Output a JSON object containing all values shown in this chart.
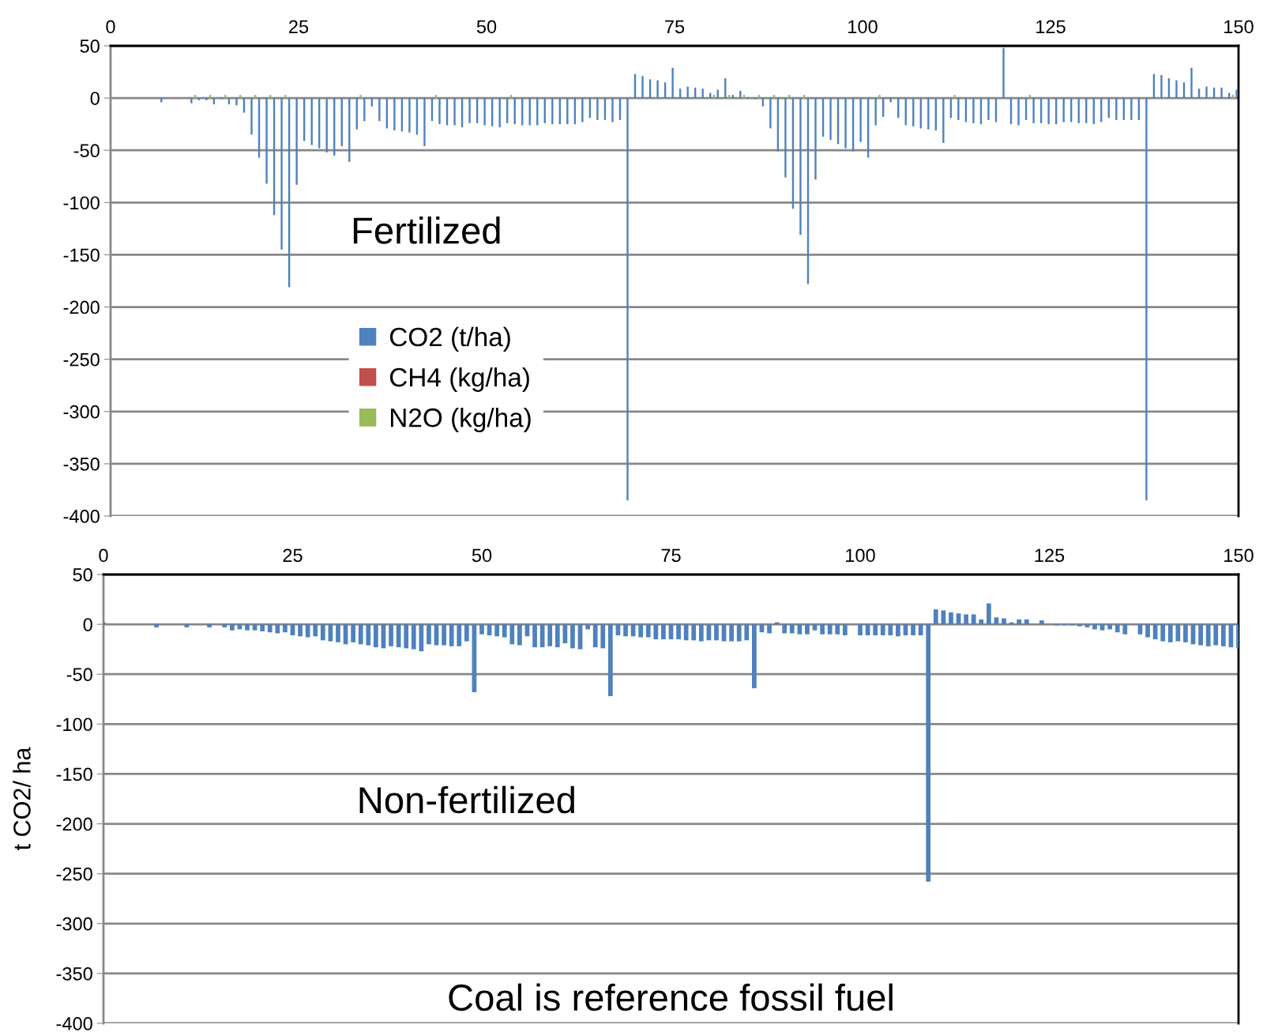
{
  "chart_data": [
    {
      "type": "bar",
      "annotations": [
        "Fertilized"
      ],
      "xlim": [
        0,
        150
      ],
      "xticks": [
        0,
        25,
        50,
        75,
        100,
        125,
        150
      ],
      "ylim": [
        -400,
        50
      ],
      "yticks": [
        50,
        0,
        -50,
        -100,
        -150,
        -200,
        -250,
        -300,
        -350,
        -400
      ],
      "grid": "y",
      "legend": "left",
      "series": [
        {
          "name": "CO2 (t/ha)",
          "color": "#4f81bd",
          "x": [
            7,
            11,
            12,
            13,
            14,
            15,
            16,
            17,
            18,
            19,
            20,
            21,
            22,
            23,
            24,
            25,
            26,
            27,
            28,
            29,
            30,
            31,
            32,
            33,
            34,
            35,
            36,
            37,
            38,
            39,
            40,
            41,
            42,
            43,
            44,
            45,
            46,
            47,
            48,
            49,
            50,
            51,
            52,
            53,
            54,
            55,
            56,
            57,
            58,
            59,
            60,
            61,
            62,
            63,
            64,
            65,
            66,
            67,
            68,
            69,
            70,
            71,
            72,
            73,
            74,
            75,
            76,
            77,
            78,
            79,
            80,
            81,
            82,
            83,
            84,
            85,
            86,
            87,
            88,
            89,
            90,
            91,
            92,
            93,
            94,
            95,
            96,
            97,
            98,
            99,
            100,
            101,
            102,
            103,
            104,
            105,
            106,
            107,
            108,
            109,
            110,
            111,
            112,
            113,
            114,
            115,
            116,
            117,
            118,
            119,
            120,
            121,
            122,
            123,
            124,
            125,
            126,
            127,
            128,
            129,
            130,
            131,
            132,
            133,
            134,
            135,
            136,
            137,
            138,
            139,
            140,
            141,
            142,
            143,
            144,
            145,
            146,
            147,
            148,
            149,
            150
          ],
          "values": [
            -4,
            -5,
            -2,
            -2,
            -6,
            -1,
            -6,
            -7,
            -14,
            -35,
            -57,
            -82,
            -112,
            -145,
            -181,
            -83,
            -41,
            -45,
            -48,
            -52,
            -55,
            -46,
            -61,
            -30,
            -22,
            -8,
            -22,
            -29,
            -31,
            -32,
            -33,
            -35,
            -46,
            -22,
            -25,
            -26,
            -26,
            -28,
            -24,
            -24,
            -26,
            -27,
            -28,
            -24,
            -25,
            -26,
            -26,
            -26,
            -24,
            -25,
            -25,
            -25,
            -25,
            -23,
            -19,
            -21,
            -21,
            -23,
            -21,
            -385,
            23,
            21,
            18,
            17,
            15,
            29,
            9,
            11,
            10,
            9,
            5,
            8,
            19,
            3,
            7,
            1,
            -1,
            -8,
            -29,
            -51,
            -76,
            -106,
            -131,
            -178,
            -78,
            -37,
            -40,
            -44,
            -48,
            -51,
            -42,
            -57,
            -26,
            -18,
            -4,
            -19,
            -26,
            -27,
            -29,
            -30,
            -31,
            -43,
            -19,
            -21,
            -23,
            -24,
            -25,
            -21,
            -23,
            48,
            -25,
            -26,
            -21,
            -24,
            -24,
            -25,
            -25,
            -23,
            -23,
            -24,
            -24,
            -25,
            -23,
            -19,
            -21,
            -21,
            -21,
            -21,
            -385,
            23,
            22,
            19,
            17,
            15,
            29,
            9,
            11,
            10,
            10,
            5,
            8
          ]
        },
        {
          "name": "CH4 (kg/ha)",
          "color": "#c0504d"
        },
        {
          "name": "N2O (kg/ha)",
          "color": "#9bbb59",
          "x": [
            11,
            13,
            15,
            17,
            19,
            21,
            23,
            33,
            43,
            53,
            80,
            82,
            84,
            86,
            88,
            90,
            92,
            102,
            112,
            122,
            149
          ],
          "values": [
            3,
            3,
            3,
            3,
            3,
            3,
            3,
            3,
            3,
            3,
            3,
            3,
            3,
            3,
            3,
            3,
            3,
            3,
            3,
            3,
            3
          ]
        }
      ]
    },
    {
      "type": "bar",
      "ylabel": "t CO2/ ha",
      "annotations": [
        "Non-fertilized",
        "Coal is reference fossil fuel"
      ],
      "xlim": [
        0,
        150
      ],
      "xticks": [
        0,
        25,
        50,
        75,
        100,
        125,
        150
      ],
      "ylim": [
        -400,
        50
      ],
      "yticks": [
        50,
        0,
        -50,
        -100,
        -150,
        -200,
        -250,
        -300,
        -350,
        -400
      ],
      "grid": "y",
      "series": [
        {
          "color": "#4f81bd",
          "x": [
            0,
            7,
            11,
            14,
            16,
            17,
            18,
            19,
            20,
            21,
            22,
            23,
            24,
            25,
            26,
            27,
            28,
            29,
            30,
            31,
            32,
            33,
            34,
            35,
            36,
            37,
            38,
            39,
            40,
            41,
            42,
            43,
            44,
            45,
            46,
            47,
            48,
            49,
            50,
            51,
            52,
            53,
            54,
            55,
            56,
            57,
            58,
            59,
            60,
            61,
            62,
            63,
            64,
            65,
            66,
            67,
            68,
            69,
            70,
            71,
            72,
            73,
            74,
            75,
            76,
            77,
            78,
            79,
            80,
            81,
            82,
            83,
            84,
            85,
            86,
            87,
            88,
            89,
            90,
            91,
            92,
            93,
            94,
            95,
            96,
            97,
            98,
            100,
            101,
            102,
            103,
            104,
            105,
            106,
            107,
            108,
            109,
            110,
            111,
            112,
            113,
            114,
            115,
            116,
            117,
            118,
            119,
            120,
            121,
            122,
            124,
            126,
            127,
            128,
            129,
            130,
            131,
            132,
            133,
            134,
            135,
            137,
            138,
            139,
            140,
            141,
            142,
            143,
            144,
            145,
            146,
            147,
            148,
            149,
            150
          ],
          "values": [
            2,
            -3,
            -3,
            -3,
            -3,
            -6,
            -5,
            -6,
            -6,
            -7,
            -8,
            -9,
            -8,
            -11,
            -12,
            -13,
            -12,
            -16,
            -17,
            -18,
            -20,
            -18,
            -20,
            -21,
            -23,
            -24,
            -22,
            -23,
            -24,
            -25,
            -27,
            -20,
            -21,
            -21,
            -22,
            -22,
            -17,
            -68,
            -10,
            -11,
            -12,
            -13,
            -20,
            -21,
            -12,
            -23,
            -23,
            -22,
            -23,
            -19,
            -24,
            -25,
            -5,
            -23,
            -24,
            -72,
            -11,
            -12,
            -12,
            -13,
            -13,
            -15,
            -15,
            -15,
            -15,
            -16,
            -16,
            -17,
            -16,
            -16,
            -17,
            -17,
            -17,
            -16,
            -64,
            -8,
            -9,
            2,
            -9,
            -9,
            -10,
            -10,
            -6,
            -10,
            -10,
            -10,
            -11,
            -11,
            -11,
            -11,
            -11,
            -11,
            -12,
            -11,
            -11,
            -11,
            -258,
            15,
            14,
            12,
            11,
            10,
            10,
            5,
            21,
            7,
            6,
            2,
            5,
            5,
            4,
            -1,
            -1,
            -1,
            -2,
            -3,
            -5,
            -6,
            -5,
            -8,
            -10,
            -10,
            -13,
            -15,
            -17,
            -18,
            -17,
            -18,
            -20,
            -21,
            -22,
            -21,
            -22,
            -23,
            -24
          ]
        }
      ]
    }
  ]
}
